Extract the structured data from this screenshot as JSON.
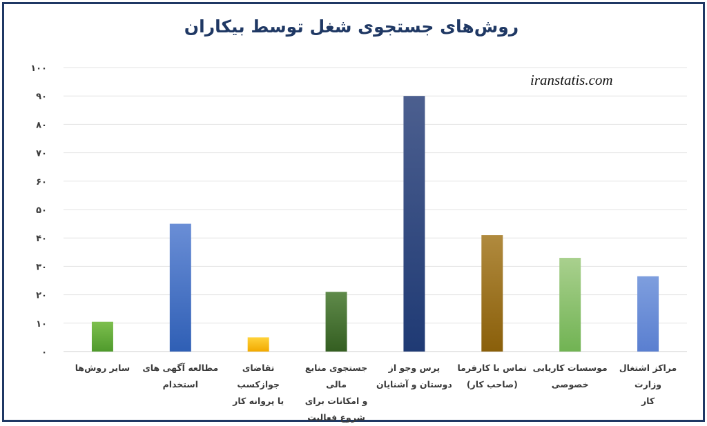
{
  "chart_data": {
    "type": "bar",
    "title": "روش‌های جستجوی شغل توسط بیکاران",
    "watermark": "iranstatis.com",
    "categories": [
      "سایر روش‌ها",
      "مطالعه آگهی های\nاستخدام",
      "تقاضای جوازکسب\nیا پروانه کار",
      "جستجوی منابع مالی\nو امکانات برای\nشروع فعالیت",
      "پرس وجو از\nدوستان و آشنایان",
      "تماس با کارفرما\n(صاحب کار)",
      "موسسات کاریابی\nخصوصی",
      "مراکز اشتغال وزارت\nکار"
    ],
    "values": [
      10.5,
      45,
      5,
      21,
      90,
      41,
      33,
      26.5
    ],
    "colors": [
      [
        "#7dbf4e",
        "#4f9a2c"
      ],
      [
        "#6a8ed6",
        "#2f5fb5"
      ],
      [
        "#ffd23a",
        "#f2a900"
      ],
      [
        "#5f8a4a",
        "#345e21"
      ],
      [
        "#4c5f8f",
        "#1f3a74"
      ],
      [
        "#b08a3e",
        "#8a5f0a"
      ],
      [
        "#a9d08e",
        "#71b353"
      ],
      [
        "#7e9ede",
        "#5a7fd0"
      ]
    ],
    "ylim": [
      0,
      100
    ],
    "yticks": [
      "٠",
      "١٠",
      "٢٠",
      "٣٠",
      "۴٠",
      "۵٠",
      "۶٠",
      "٧٠",
      "٨٠",
      "٩٠",
      "١٠٠"
    ],
    "grid": true,
    "xlabel": "",
    "ylabel": ""
  }
}
